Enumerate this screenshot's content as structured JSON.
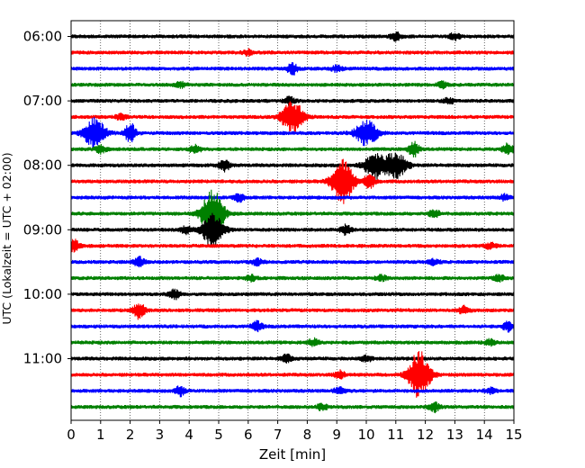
{
  "chart_data": {
    "type": "line",
    "title": "",
    "xlabel": "Zeit  [min]",
    "ylabel": "UTC (Lokalzeit = UTC + 02:00)",
    "xlim": [
      0,
      15
    ],
    "x_ticks": [
      "0",
      "1",
      "2",
      "3",
      "4",
      "5",
      "6",
      "7",
      "8",
      "9",
      "10",
      "11",
      "12",
      "13",
      "14",
      "15"
    ],
    "y_ticks": [
      "06:00",
      "07:00",
      "08:00",
      "09:00",
      "10:00",
      "11:00"
    ],
    "grid": "vertical dotted",
    "trace_interval_minutes": 15,
    "trace_colors": [
      "#000000",
      "#ff0000",
      "#0000ff",
      "#008000"
    ],
    "series": [
      {
        "label": "06:00",
        "events": [
          {
            "t": 11.0,
            "amp": 4
          },
          {
            "t": 13.0,
            "amp": 4
          }
        ]
      },
      {
        "label": "06:15",
        "events": [
          {
            "t": 6.0,
            "amp": 3
          }
        ]
      },
      {
        "label": "06:30",
        "events": [
          {
            "t": 7.5,
            "amp": 6
          },
          {
            "t": 9.0,
            "amp": 3
          }
        ]
      },
      {
        "label": "06:45",
        "events": [
          {
            "t": 3.7,
            "amp": 3
          },
          {
            "t": 12.6,
            "amp": 3
          }
        ]
      },
      {
        "label": "07:00",
        "events": [
          {
            "t": 7.4,
            "amp": 4
          },
          {
            "t": 12.8,
            "amp": 3
          }
        ]
      },
      {
        "label": "07:15",
        "events": [
          {
            "t": 7.5,
            "amp": 18
          },
          {
            "t": 1.7,
            "amp": 3
          }
        ]
      },
      {
        "label": "07:30",
        "events": [
          {
            "t": 0.8,
            "amp": 16
          },
          {
            "t": 2.0,
            "amp": 11
          },
          {
            "t": 10.0,
            "amp": 14
          }
        ]
      },
      {
        "label": "07:45",
        "events": [
          {
            "t": 1.0,
            "amp": 4
          },
          {
            "t": 4.2,
            "amp": 5
          },
          {
            "t": 11.6,
            "amp": 8
          },
          {
            "t": 14.8,
            "amp": 6
          }
        ]
      },
      {
        "label": "08:00",
        "events": [
          {
            "t": 5.2,
            "amp": 6
          },
          {
            "t": 10.3,
            "amp": 14
          },
          {
            "t": 11.0,
            "amp": 14
          }
        ]
      },
      {
        "label": "08:15",
        "events": [
          {
            "t": 9.2,
            "amp": 24
          },
          {
            "t": 10.1,
            "amp": 8
          }
        ]
      },
      {
        "label": "08:30",
        "events": [
          {
            "t": 5.7,
            "amp": 4
          },
          {
            "t": 14.7,
            "amp": 3
          }
        ]
      },
      {
        "label": "08:45",
        "events": [
          {
            "t": 4.8,
            "amp": 28
          },
          {
            "t": 12.3,
            "amp": 4
          }
        ]
      },
      {
        "label": "09:00",
        "events": [
          {
            "t": 4.8,
            "amp": 18
          },
          {
            "t": 3.9,
            "amp": 4
          },
          {
            "t": 9.3,
            "amp": 5
          }
        ]
      },
      {
        "label": "09:15",
        "events": [
          {
            "t": 0.1,
            "amp": 7
          },
          {
            "t": 14.2,
            "amp": 3
          }
        ]
      },
      {
        "label": "09:30",
        "events": [
          {
            "t": 2.3,
            "amp": 5
          },
          {
            "t": 6.3,
            "amp": 3
          },
          {
            "t": 12.3,
            "amp": 3
          }
        ]
      },
      {
        "label": "09:45",
        "events": [
          {
            "t": 6.1,
            "amp": 3
          },
          {
            "t": 10.5,
            "amp": 3
          },
          {
            "t": 14.5,
            "amp": 3
          }
        ]
      },
      {
        "label": "10:00",
        "events": [
          {
            "t": 3.5,
            "amp": 5
          }
        ]
      },
      {
        "label": "10:15",
        "events": [
          {
            "t": 2.3,
            "amp": 9
          },
          {
            "t": 13.3,
            "amp": 4
          }
        ]
      },
      {
        "label": "10:30",
        "events": [
          {
            "t": 6.3,
            "amp": 5
          },
          {
            "t": 14.8,
            "amp": 5
          }
        ]
      },
      {
        "label": "10:45",
        "events": [
          {
            "t": 8.2,
            "amp": 4
          },
          {
            "t": 14.2,
            "amp": 3
          }
        ]
      },
      {
        "label": "11:00",
        "events": [
          {
            "t": 7.3,
            "amp": 4
          },
          {
            "t": 10.0,
            "amp": 3
          }
        ]
      },
      {
        "label": "11:15",
        "events": [
          {
            "t": 11.8,
            "amp": 26
          },
          {
            "t": 9.1,
            "amp": 4
          }
        ]
      },
      {
        "label": "11:30",
        "events": [
          {
            "t": 3.7,
            "amp": 5
          },
          {
            "t": 9.1,
            "amp": 4
          },
          {
            "t": 14.2,
            "amp": 3
          }
        ]
      },
      {
        "label": "11:45",
        "events": [
          {
            "t": 12.3,
            "amp": 5
          },
          {
            "t": 8.5,
            "amp": 3
          }
        ]
      }
    ]
  }
}
